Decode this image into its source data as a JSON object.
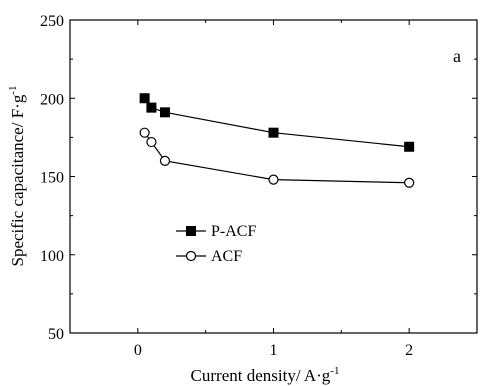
{
  "chart_data": {
    "type": "line",
    "xlabel": "Current density/ A·g",
    "xlabel_sup": "-1",
    "ylabel": "Specific capacitance/ F·g",
    "ylabel_sup": "-1",
    "xlim": [
      -0.5,
      2.5
    ],
    "ylim": [
      50,
      250
    ],
    "x_ticks": [
      0,
      1,
      2
    ],
    "y_ticks": [
      50,
      100,
      150,
      200,
      250
    ],
    "panel_label": "a",
    "grid": false,
    "legend_position": "lower-left",
    "series": [
      {
        "name": "P-ACF",
        "marker": "filled-square",
        "color": "#000000",
        "x": [
          0.05,
          0.1,
          0.2,
          1.0,
          2.0
        ],
        "y": [
          200,
          194,
          191,
          178,
          169
        ]
      },
      {
        "name": "ACF",
        "marker": "open-circle",
        "color": "#000000",
        "x": [
          0.05,
          0.1,
          0.2,
          1.0,
          2.0
        ],
        "y": [
          178,
          172,
          160,
          148,
          146
        ]
      }
    ]
  }
}
